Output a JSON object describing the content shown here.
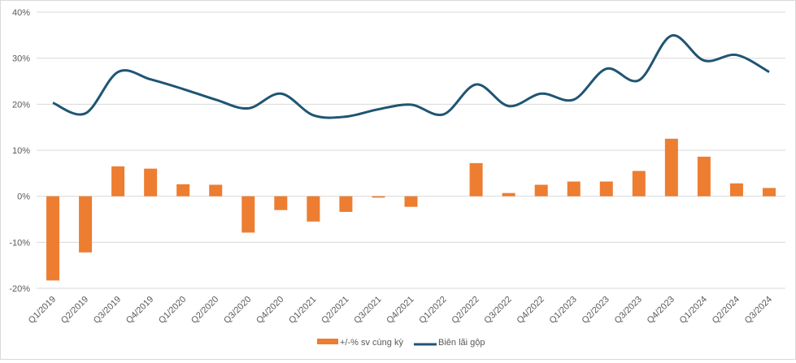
{
  "chart_data": {
    "type": "bar+line",
    "title": "",
    "xlabel": "",
    "ylabel": "",
    "ylim": [
      -20,
      40
    ],
    "yticks": [
      -20,
      -10,
      0,
      10,
      20,
      30,
      40
    ],
    "ytick_labels": [
      "-20%",
      "-10%",
      "0%",
      "10%",
      "20%",
      "30%",
      "40%"
    ],
    "grid": true,
    "legend_position": "bottom",
    "categories": [
      "Q1/2019",
      "Q2/2019",
      "Q3/2019",
      "Q4/2019",
      "Q1/2020",
      "Q2/2020",
      "Q3/2020",
      "Q4/2020",
      "Q1/2021",
      "Q2/2021",
      "Q3/2021",
      "Q4/2021",
      "Q1/2022",
      "Q2/2022",
      "Q3/2022",
      "Q4/2022",
      "Q1/2023",
      "Q2/2023",
      "Q3/2023",
      "Q4/2023",
      "Q1/2024",
      "Q2/2024",
      "Q3/2024"
    ],
    "series": [
      {
        "name": "+/-% sv cùng kỳ",
        "type": "bar",
        "color": "#ed7d31",
        "values": [
          -18.3,
          -12.2,
          6.5,
          6.0,
          2.6,
          2.5,
          -7.9,
          -3.0,
          -5.5,
          -3.4,
          -0.3,
          -2.3,
          0,
          7.2,
          0.7,
          2.5,
          3.2,
          3.2,
          5.5,
          12.5,
          8.6,
          2.8,
          1.8
        ]
      },
      {
        "name": "Biên lãi gộp",
        "type": "line",
        "color": "#1f5573",
        "values": [
          20.3,
          18.0,
          27.0,
          25.4,
          23.3,
          21.0,
          19.1,
          22.3,
          17.6,
          17.3,
          18.9,
          19.9,
          17.8,
          24.3,
          19.6,
          22.3,
          21.0,
          27.7,
          25.2,
          34.9,
          29.5,
          30.7,
          27.0
        ]
      }
    ]
  }
}
